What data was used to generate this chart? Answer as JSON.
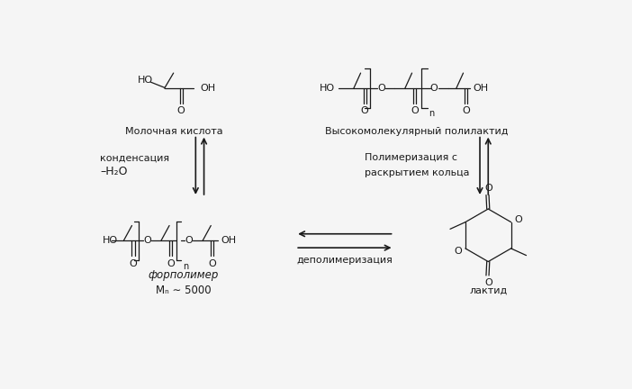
{
  "background_color": "#f5f5f5",
  "color": "#1a1a1a",
  "labels": {
    "lactic_acid": "Молочная кислота",
    "high_mol_polylactide": "Высокомолекулярный полилактид",
    "condensation": "конденсация",
    "minus_water": "–H₂O",
    "polymerization_line1": "Полимеризация с",
    "polymerization_line2": "раскрытием кольца",
    "depolymerization": "деполимеризация",
    "prepolymer": "форполимер",
    "mn": "Mₙ ∼ 5000",
    "lactide": "лактид"
  }
}
